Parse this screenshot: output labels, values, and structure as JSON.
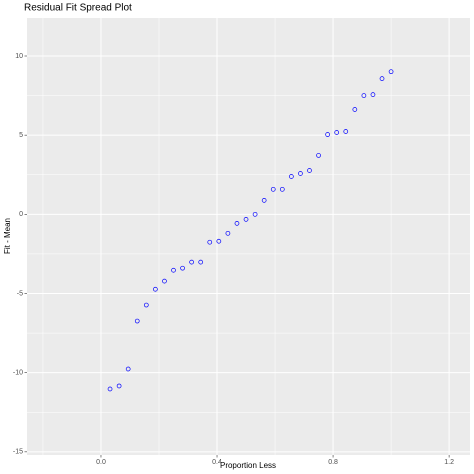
{
  "chart_data": {
    "type": "scatter",
    "title": "Residual Fit Spread Plot",
    "xlabel": "Proportion Less",
    "ylabel": "Fit - Mean",
    "series": [
      {
        "color": "#0000ff",
        "x": [
          0.03125,
          0.0625,
          0.09375,
          0.125,
          0.15625,
          0.1875,
          0.21875,
          0.25,
          0.28125,
          0.3125,
          0.34375,
          0.375,
          0.40625,
          0.4375,
          0.46875,
          0.5,
          0.53125,
          0.5625,
          0.59375,
          0.625,
          0.65625,
          0.6875,
          0.71875,
          0.75,
          0.78125,
          0.8125,
          0.84375,
          0.875,
          0.90625,
          0.9375,
          0.96875,
          1.0
        ],
        "values": [
          -11.03,
          -10.84,
          -9.77,
          -6.74,
          -5.73,
          -4.73,
          -4.22,
          -3.53,
          -3.4,
          -3.02,
          -3.02,
          -1.76,
          -1.7,
          -1.2,
          -0.57,
          -0.32,
          0,
          0.88,
          1.58,
          1.58,
          2.39,
          2.58,
          2.77,
          3.72,
          5.04,
          5.17,
          5.23,
          6.62,
          7.5,
          7.56,
          8.57,
          9.01
        ]
      }
    ],
    "xlim": [
      -0.255,
      1.272
    ],
    "ylim": [
      -15.2,
      12.4
    ],
    "xticks": [
      {
        "value": 0,
        "label": "0.0"
      },
      0.4,
      0.8,
      1.2
    ],
    "yticks": [
      -15,
      -10,
      -5,
      0,
      5,
      10
    ],
    "grid": true
  }
}
